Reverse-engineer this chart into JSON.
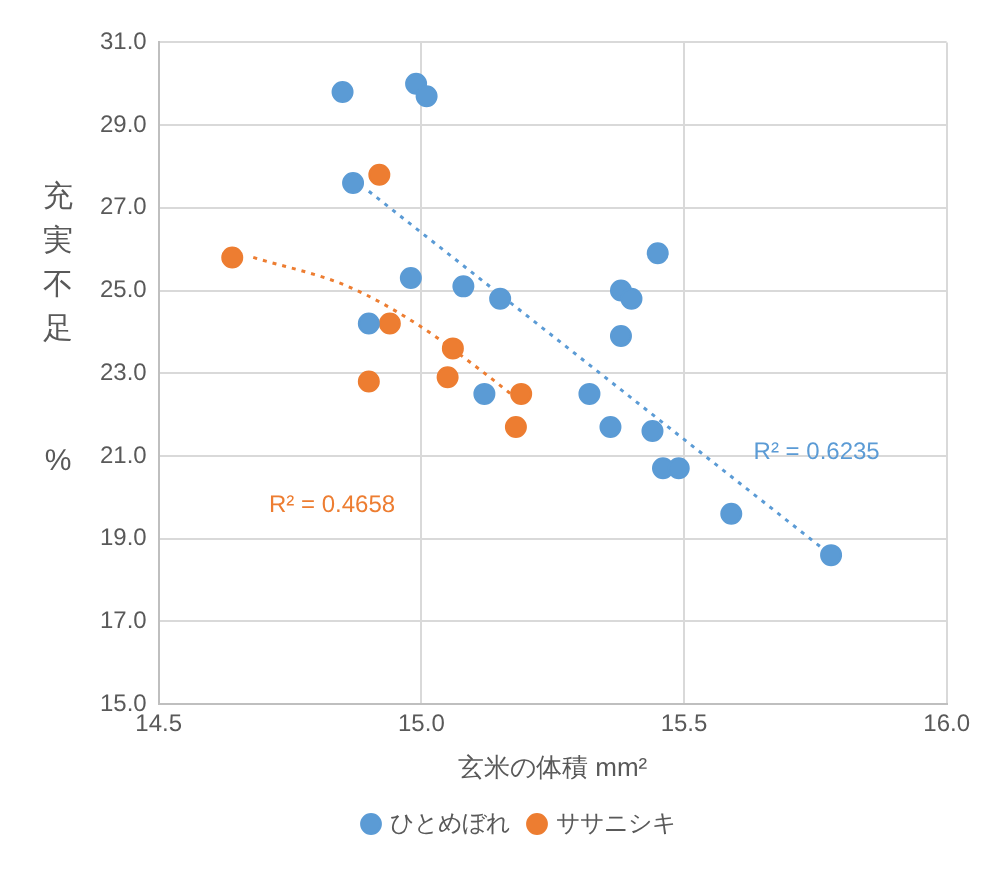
{
  "chart_data": {
    "type": "scatter",
    "xlabel": "玄米の体積 mm²",
    "ylabel": "充実不足%",
    "xlim": [
      14.5,
      16
    ],
    "xticks": [
      {
        "value": 14.5,
        "label": "14.5"
      },
      {
        "value": 15,
        "label": "15.0"
      },
      {
        "value": 15.5,
        "label": "15.5"
      },
      {
        "value": 16,
        "label": "16.0"
      }
    ],
    "ylim": [
      15,
      31
    ],
    "yticks": [
      {
        "value": 15,
        "label": "15.0"
      },
      {
        "value": 17,
        "label": "17.0"
      },
      {
        "value": 19,
        "label": "19.0"
      },
      {
        "value": 21,
        "label": "21.0"
      },
      {
        "value": 23,
        "label": "23.0"
      },
      {
        "value": 25,
        "label": "25.0"
      },
      {
        "value": 27,
        "label": "27.0"
      },
      {
        "value": 29,
        "label": "29.0"
      },
      {
        "value": 31,
        "label": "31.0"
      }
    ],
    "grid": true,
    "legend": "bottom",
    "marker": "circle",
    "series": [
      {
        "name": "ひとめぼれ",
        "color": "#5b9bd5",
        "x": [
          14.85,
          14.99,
          15.01,
          14.87,
          14.98,
          15.08,
          15.15,
          14.9,
          15.12,
          15.32,
          15.36,
          15.44,
          15.46,
          15.49,
          15.38,
          15.38,
          15.4,
          15.45,
          15.59,
          15.78
        ],
        "values": [
          29.8,
          30.0,
          29.7,
          27.6,
          25.3,
          25.1,
          24.8,
          24.2,
          22.5,
          22.5,
          21.7,
          21.6,
          20.7,
          20.7,
          23.9,
          25.0,
          24.8,
          25.9,
          19.6,
          18.6
        ]
      },
      {
        "name": "ササニシキ",
        "color": "#ed7d31",
        "x": [
          14.92,
          14.64,
          14.94,
          15.06,
          14.9,
          15.05,
          15.18,
          15.19
        ],
        "values": [
          27.8,
          25.8,
          24.2,
          23.6,
          22.8,
          22.9,
          21.7,
          22.5
        ]
      },
      {
        "type": "line",
        "color": "#5b9bd5",
        "line_style": "dotted",
        "marker": "none",
        "x": [
          14.9,
          15.78
        ],
        "values": [
          27.4,
          18.6
        ]
      },
      {
        "type": "line",
        "color": "#ed7d31",
        "line_style": "dotted",
        "marker": "none",
        "x": [
          14.68,
          14.86,
          14.99,
          15.11,
          15.19
        ],
        "values": [
          25.8,
          25.1,
          24.2,
          23.1,
          22.3
        ]
      }
    ],
    "annotations": [
      "R² = 0.6235",
      "R² = 0.4658"
    ]
  }
}
